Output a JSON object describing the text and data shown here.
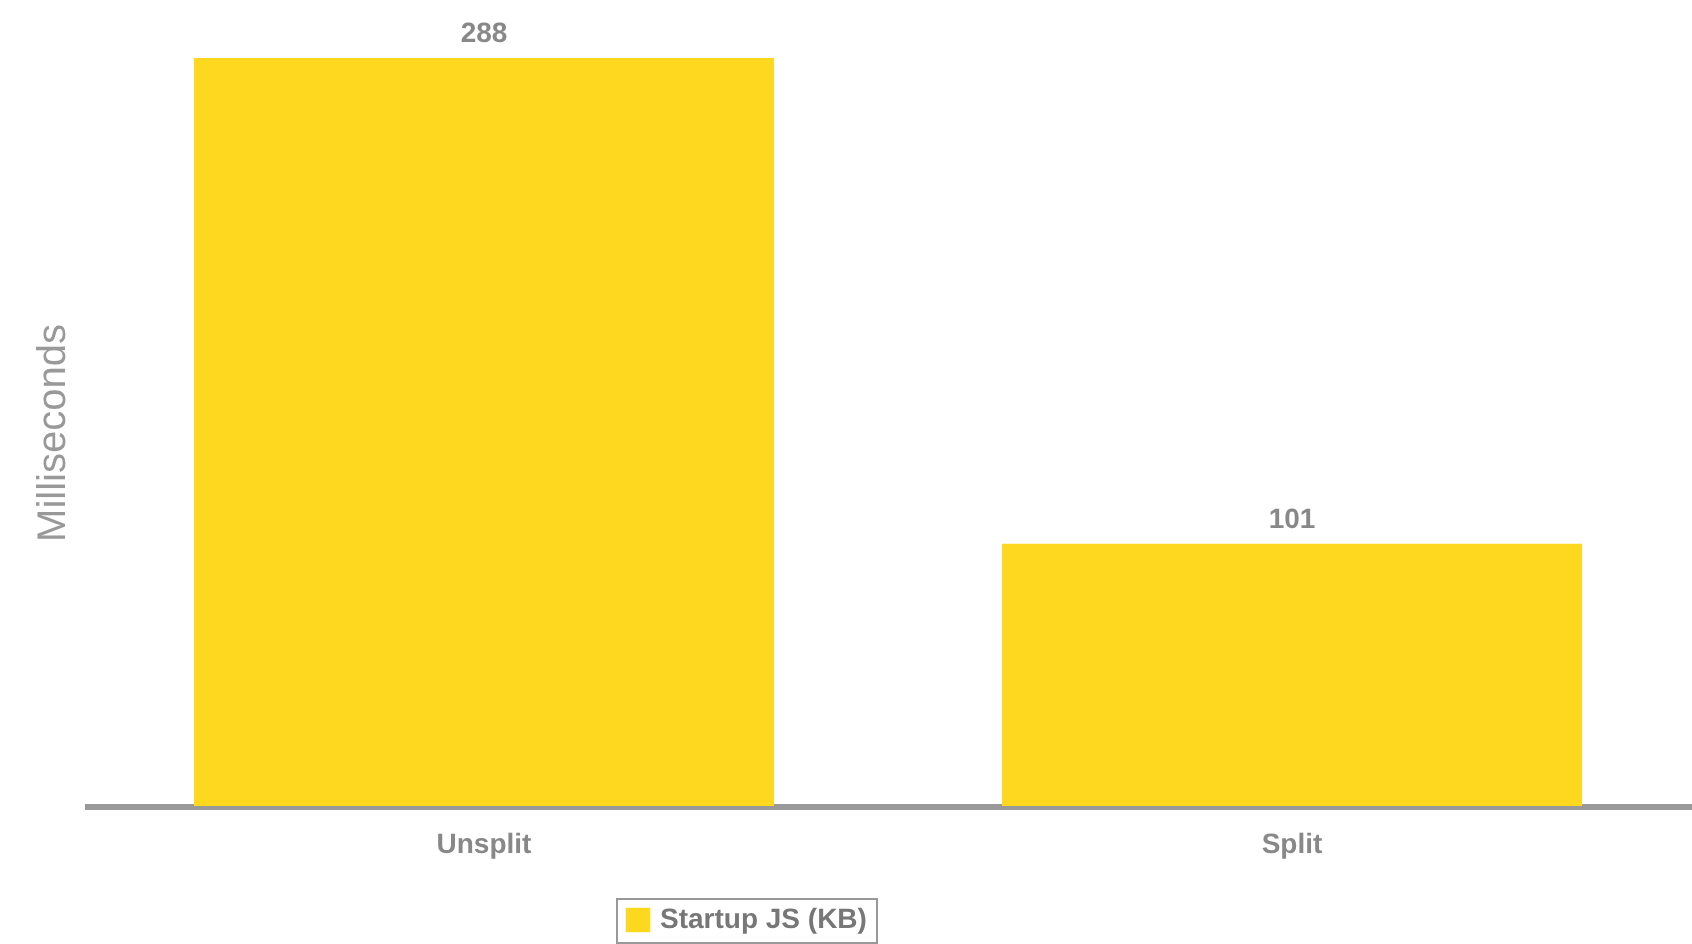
{
  "chart_data": {
    "type": "bar",
    "ylabel": "Milliseconds",
    "categories": [
      "Unsplit",
      "Split"
    ],
    "series": [
      {
        "name": "Startup JS (KB)",
        "color": "#fdd81e",
        "values": [
          288,
          101
        ]
      }
    ],
    "data_labels": true,
    "legend": "bottom",
    "grid": false
  }
}
